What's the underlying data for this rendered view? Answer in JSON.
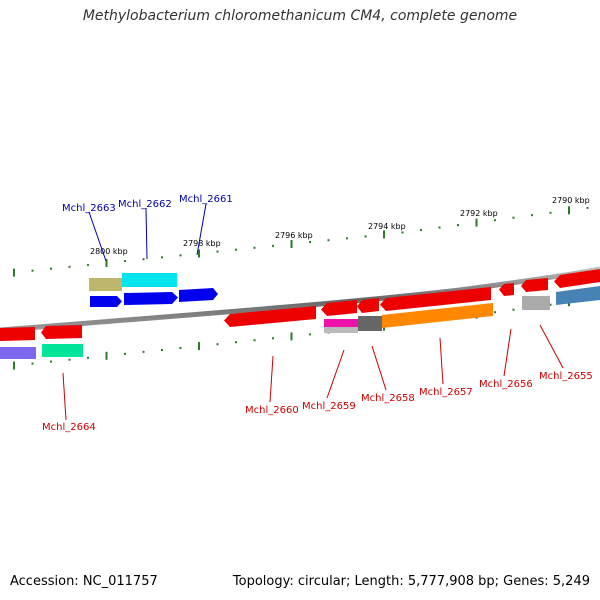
{
  "title": "Methylobacterium chloromethanicum CM4, complete genome",
  "footer": {
    "accession": "Accession: NC_011757",
    "stats": "Topology: circular; Length: 5,777,908 bp; Genes: 5,249"
  },
  "scale_labels": [
    "2800 kbp",
    "2798 kbp",
    "2796 kbp",
    "2794 kbp",
    "2792 kbp",
    "2790 kbp"
  ],
  "colors": {
    "forward_label": "#0000aa",
    "reverse_label": "#cc0000",
    "backbone": "#777777",
    "tick": "#2a7a2a"
  },
  "genes": [
    {
      "label": "Mchl_2663",
      "strand": "forward"
    },
    {
      "label": "Mchl_2662",
      "strand": "forward"
    },
    {
      "label": "Mchl_2661",
      "strand": "forward"
    },
    {
      "label": "Mchl_2664",
      "strand": "reverse"
    },
    {
      "label": "Mchl_2660",
      "strand": "reverse"
    },
    {
      "label": "Mchl_2659",
      "strand": "reverse"
    },
    {
      "label": "Mchl_2658",
      "strand": "reverse"
    },
    {
      "label": "Mchl_2657",
      "strand": "reverse"
    },
    {
      "label": "Mchl_2656",
      "strand": "reverse"
    },
    {
      "label": "Mchl_2655",
      "strand": "reverse"
    }
  ]
}
